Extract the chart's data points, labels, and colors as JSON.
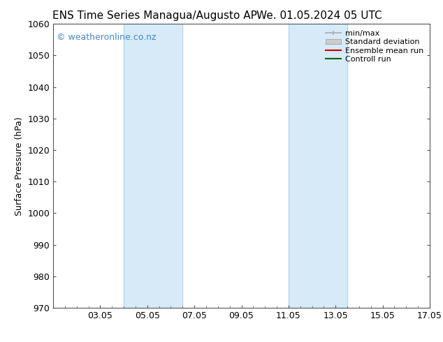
{
  "title_left": "ENS Time Series Managua/Augusto AP",
  "title_right": "We. 01.05.2024 05 UTC",
  "ylabel": "Surface Pressure (hPa)",
  "ylim": [
    970,
    1060
  ],
  "yticks": [
    970,
    980,
    990,
    1000,
    1010,
    1020,
    1030,
    1040,
    1050,
    1060
  ],
  "xlim": [
    0,
    16
  ],
  "xtick_positions": [
    2,
    4,
    6,
    8,
    10,
    12,
    14,
    16
  ],
  "xtick_labels": [
    "03.05",
    "05.05",
    "07.05",
    "09.05",
    "11.05",
    "13.05",
    "15.05",
    "17.05"
  ],
  "bg_color": "#ffffff",
  "plot_bg_color": "#ffffff",
  "shaded_regions": [
    {
      "x_start": 3.0,
      "x_end": 5.5,
      "color": "#d6eaf8"
    },
    {
      "x_start": 10.0,
      "x_end": 12.5,
      "color": "#d6eaf8"
    }
  ],
  "shaded_line_color": "#aed6f1",
  "watermark_text": "© weatheronline.co.nz",
  "watermark_color": "#4488cc",
  "legend_entries": [
    {
      "label": "min/max",
      "color": "#aaaaaa",
      "style": "line_with_cap"
    },
    {
      "label": "Standard deviation",
      "color": "#cccccc",
      "style": "filled_box"
    },
    {
      "label": "Ensemble mean run",
      "color": "#cc0000",
      "style": "line"
    },
    {
      "label": "Controll run",
      "color": "#006600",
      "style": "line"
    }
  ],
  "title_fontsize": 11,
  "label_fontsize": 9,
  "tick_fontsize": 9,
  "watermark_fontsize": 9,
  "legend_fontsize": 8,
  "spine_color": "#555555"
}
